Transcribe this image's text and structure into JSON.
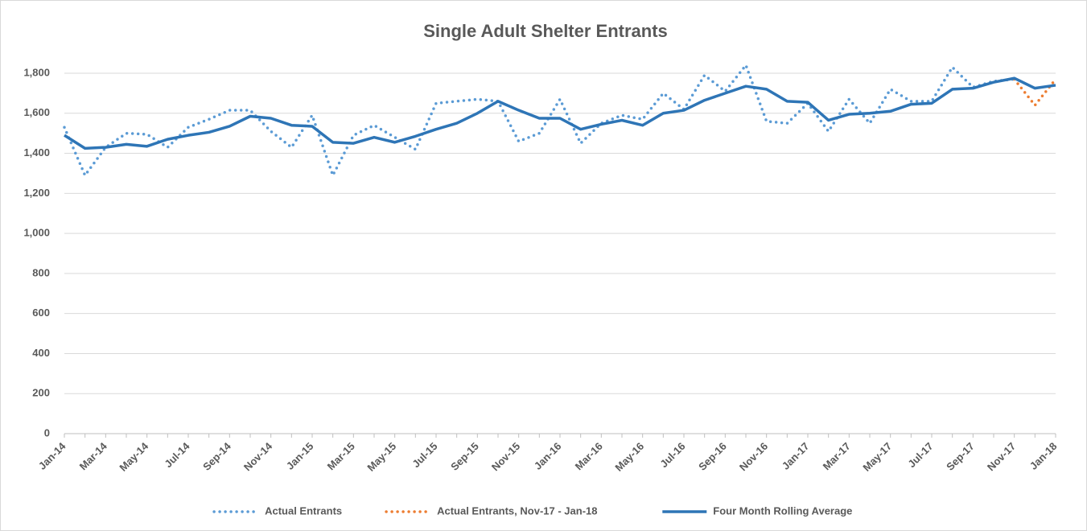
{
  "chart_data": {
    "type": "line",
    "title": "Single Adult Shelter Entrants",
    "categories": [
      "Jan-14",
      null,
      "Mar-14",
      null,
      "May-14",
      null,
      "Jul-14",
      null,
      "Sep-14",
      null,
      "Nov-14",
      null,
      "Jan-15",
      null,
      "Mar-15",
      null,
      "May-15",
      null,
      "Jul-15",
      null,
      "Sep-15",
      null,
      "Nov-15",
      null,
      "Jan-16",
      null,
      "Mar-16",
      null,
      "May-16",
      null,
      "Jul-16",
      null,
      "Sep-16",
      null,
      "Nov-16",
      null,
      "Jan-17",
      null,
      "Mar-17",
      null,
      "May-17",
      null,
      "Jul-17",
      null,
      "Sep-17",
      null,
      "Nov-17",
      null,
      "Jan-18"
    ],
    "series": [
      {
        "name": "Actual Entrants",
        "color": "#5b9bd5",
        "line_style": "dotted",
        "values": [
          1530,
          1290,
          1430,
          1500,
          1495,
          1430,
          1530,
          1570,
          1615,
          1615,
          1510,
          1430,
          1590,
          1290,
          1490,
          1540,
          1480,
          1420,
          1650,
          1660,
          1670,
          1660,
          1460,
          1500,
          1670,
          1450,
          1550,
          1590,
          1570,
          1700,
          1620,
          1790,
          1710,
          1840,
          1560,
          1550,
          1650,
          1510,
          1670,
          1550,
          1720,
          1660,
          1660,
          1830,
          1730,
          1760,
          1770,
          null,
          null
        ]
      },
      {
        "name": "Actual Entrants, Nov-17 - Jan-18",
        "color": "#ed7d31",
        "line_style": "dotted",
        "values": [
          null,
          null,
          null,
          null,
          null,
          null,
          null,
          null,
          null,
          null,
          null,
          null,
          null,
          null,
          null,
          null,
          null,
          null,
          null,
          null,
          null,
          null,
          null,
          null,
          null,
          null,
          null,
          null,
          null,
          null,
          null,
          null,
          null,
          null,
          null,
          null,
          null,
          null,
          null,
          null,
          null,
          null,
          null,
          null,
          null,
          null,
          1770,
          1640,
          1770
        ]
      },
      {
        "name": "Four Month Rolling Average",
        "color": "#2e75b6",
        "line_style": "solid",
        "values": [
          1490,
          1425,
          1430,
          1445,
          1435,
          1470,
          1490,
          1505,
          1535,
          1585,
          1575,
          1540,
          1535,
          1455,
          1450,
          1480,
          1455,
          1485,
          1520,
          1550,
          1600,
          1660,
          1615,
          1575,
          1575,
          1520,
          1545,
          1565,
          1540,
          1600,
          1615,
          1665,
          1700,
          1735,
          1720,
          1660,
          1655,
          1565,
          1595,
          1600,
          1610,
          1645,
          1650,
          1720,
          1725,
          1755,
          1775,
          1725,
          1740
        ]
      }
    ],
    "ylim": [
      0,
      1800
    ],
    "yticks": [
      0,
      200,
      400,
      600,
      800,
      {
        "value": 1000,
        "label": "1,000"
      },
      {
        "value": 1200,
        "label": "1,200"
      },
      {
        "value": 1400,
        "label": "1,400"
      },
      {
        "value": 1600,
        "label": "1,600"
      },
      {
        "value": 1800,
        "label": "1,800"
      }
    ],
    "grid": true,
    "legend": "bottom"
  }
}
